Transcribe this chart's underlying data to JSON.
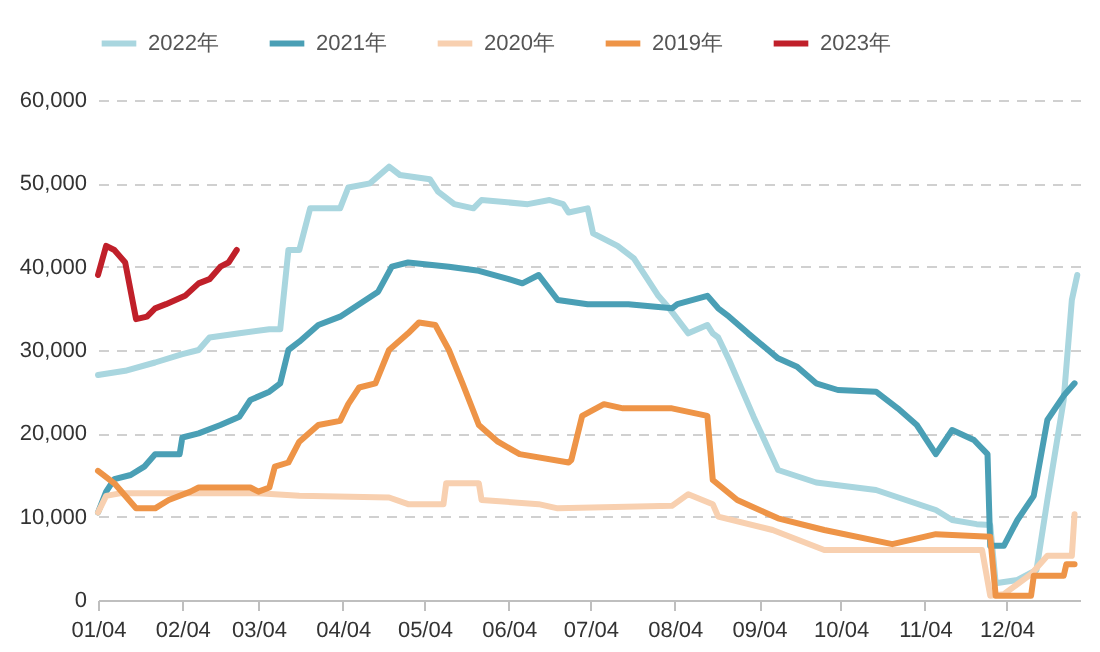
{
  "chart_data": {
    "type": "line",
    "legend": "top",
    "grid": "y",
    "xlim": [
      "--01-04",
      "--12-31"
    ],
    "xticks": [
      {
        "value": "--01-04",
        "label": "01/04"
      },
      {
        "value": "--02-04",
        "label": "02/04"
      },
      {
        "value": "--03-04",
        "label": "03/04"
      },
      {
        "value": "--04-04",
        "label": "04/04"
      },
      {
        "value": "--05-04",
        "label": "05/04"
      },
      {
        "value": "--06-04",
        "label": "06/04"
      },
      {
        "value": "--07-04",
        "label": "07/04"
      },
      {
        "value": "--08-04",
        "label": "08/04"
      },
      {
        "value": "--09-04",
        "label": "09/04"
      },
      {
        "value": "--10-04",
        "label": "10/04"
      },
      {
        "value": "--11-04",
        "label": "11/04"
      },
      {
        "value": "--12-04",
        "label": "12/04"
      }
    ],
    "ylim": [
      0,
      60000
    ],
    "yticks": [
      {
        "value": 0,
        "label": "0"
      },
      {
        "value": 10000,
        "label": "10,000"
      },
      {
        "value": 20000,
        "label": "20,000"
      },
      {
        "value": 30000,
        "label": "30,000"
      },
      {
        "value": 40000,
        "label": "40,000"
      },
      {
        "value": 50000,
        "label": "50,000"
      },
      {
        "value": 60000,
        "label": "60,000"
      }
    ],
    "series": [
      {
        "name": "2022年",
        "color": "#a9d6df",
        "x": [
          "--01-04",
          "--01-14",
          "--01-25",
          "--02-04",
          "--02-10",
          "--02-14",
          "--02-25",
          "--03-08",
          "--03-12",
          "--03-15",
          "--03-19",
          "--03-23",
          "--04-03",
          "--04-06",
          "--04-14",
          "--04-21",
          "--04-25",
          "--05-06",
          "--05-09",
          "--05-15",
          "--05-22",
          "--05-25",
          "--06-11",
          "--06-19",
          "--06-24",
          "--06-26",
          "--07-03",
          "--07-05",
          "--07-14",
          "--07-20",
          "--07-25",
          "--07-29",
          "--08-02",
          "--08-09",
          "--08-16",
          "--08-18",
          "--08-20",
          "--08-24",
          "--09-02",
          "--09-11",
          "--09-25",
          "--10-17",
          "--11-08",
          "--11-14",
          "--11-23",
          "--11-28",
          "--11-30",
          "--12-08",
          "--12-15",
          "--12-19",
          "--12-25",
          "--12-28",
          "--12-30"
        ],
        "values": [
          27000,
          27500,
          28500,
          29500,
          30000,
          31500,
          32000,
          32500,
          32500,
          42000,
          42000,
          47000,
          47000,
          49500,
          50000,
          52000,
          51000,
          50500,
          49000,
          47500,
          47000,
          48000,
          47500,
          48000,
          47500,
          46500,
          47000,
          44000,
          42500,
          41000,
          38500,
          36500,
          35000,
          32000,
          33000,
          32000,
          31500,
          28800,
          22000,
          15600,
          14100,
          13200,
          10800,
          9600,
          9100,
          9000,
          2000,
          2400,
          3600,
          12000,
          24000,
          36000,
          39000
        ]
      },
      {
        "name": "2021年",
        "color": "#4a9fb5",
        "x": [
          "--01-04",
          "--01-07",
          "--01-10",
          "--01-16",
          "--01-21",
          "--01-25",
          "--02-03",
          "--02-04",
          "--02-10",
          "--02-18",
          "--02-25",
          "--03-01",
          "--03-08",
          "--03-12",
          "--03-15",
          "--03-19",
          "--03-26",
          "--04-03",
          "--04-10",
          "--04-17",
          "--04-22",
          "--04-28",
          "--05-13",
          "--05-24",
          "--06-04",
          "--06-09",
          "--06-15",
          "--06-22",
          "--07-03",
          "--07-18",
          "--08-03",
          "--08-05",
          "--08-16",
          "--08-20",
          "--08-24",
          "--08-31",
          "--09-11",
          "--09-18",
          "--09-25",
          "--10-03",
          "--10-17",
          "--10-25",
          "--11-01",
          "--11-08",
          "--11-14",
          "--11-22",
          "--11-27",
          "--11-28",
          "--12-03",
          "--12-08",
          "--12-14",
          "--12-19",
          "--12-25",
          "--12-29"
        ],
        "values": [
          10500,
          13000,
          14500,
          15000,
          16000,
          17500,
          17500,
          19500,
          20000,
          21000,
          22000,
          24000,
          25000,
          26000,
          30000,
          31000,
          33000,
          34000,
          35500,
          37000,
          40000,
          40500,
          40000,
          39500,
          38500,
          38000,
          39000,
          36000,
          35500,
          35500,
          35000,
          35500,
          36500,
          35000,
          34000,
          32000,
          29000,
          28000,
          26000,
          25200,
          25000,
          23000,
          21000,
          17500,
          20400,
          19200,
          17500,
          6500,
          6500,
          9600,
          12500,
          21600,
          24500,
          26000
        ]
      },
      {
        "name": "2020年",
        "color": "#f8d0b0",
        "x": [
          "--01-04",
          "--01-07",
          "--01-12",
          "--03-04",
          "--03-19",
          "--04-21",
          "--04-28",
          "--05-11",
          "--05-12",
          "--05-24",
          "--05-25",
          "--06-15",
          "--06-22",
          "--08-03",
          "--08-09",
          "--08-18",
          "--08-20",
          "--09-09",
          "--09-28",
          "--11-25",
          "--11-28",
          "--12-03",
          "--12-13",
          "--12-19",
          "--12-28",
          "--12-29"
        ],
        "values": [
          10500,
          12500,
          12800,
          12800,
          12500,
          12300,
          11500,
          11500,
          14000,
          14000,
          12000,
          11500,
          11000,
          11300,
          12700,
          11500,
          10000,
          8400,
          6000,
          6000,
          500,
          700,
          3100,
          5300,
          5300,
          10300
        ]
      },
      {
        "name": "2019年",
        "color": "#ee9447",
        "x": [
          "--01-04",
          "--01-10",
          "--01-14",
          "--01-18",
          "--01-25",
          "--01-30",
          "--02-07",
          "--02-10",
          "--03-01",
          "--03-04",
          "--03-08",
          "--03-10",
          "--03-15",
          "--03-19",
          "--03-26",
          "--04-03",
          "--04-06",
          "--04-10",
          "--04-16",
          "--04-21",
          "--04-28",
          "--05-02",
          "--05-08",
          "--05-13",
          "--05-18",
          "--05-24",
          "--05-31",
          "--06-08",
          "--06-26",
          "--06-27",
          "--07-01",
          "--07-09",
          "--07-16",
          "--08-03",
          "--08-16",
          "--08-18",
          "--08-27",
          "--09-11",
          "--09-28",
          "--10-23",
          "--11-08",
          "--11-28",
          "--11-30",
          "--12-13",
          "--12-14",
          "--12-25",
          "--12-26",
          "--12-29"
        ],
        "values": [
          15500,
          14000,
          12500,
          11000,
          11000,
          12000,
          13000,
          13500,
          13500,
          13000,
          13500,
          16000,
          16500,
          19000,
          21000,
          21500,
          23500,
          25500,
          26000,
          30000,
          32000,
          33300,
          33000,
          30000,
          26000,
          21000,
          19000,
          17500,
          16500,
          16800,
          22100,
          23500,
          23000,
          23000,
          22100,
          14400,
          12000,
          9800,
          8400,
          6700,
          7900,
          7600,
          500,
          500,
          2900,
          2900,
          4300,
          4300
        ]
      },
      {
        "name": "2023年",
        "color": "#c0202a",
        "x": [
          "--01-04",
          "--01-07",
          "--01-10",
          "--01-14",
          "--01-18",
          "--01-22",
          "--01-25",
          "--01-29",
          "--02-05",
          "--02-10",
          "--02-14",
          "--02-18",
          "--02-21",
          "--02-24"
        ],
        "values": [
          39000,
          42500,
          42000,
          40500,
          33700,
          34000,
          35000,
          35500,
          36500,
          38000,
          38500,
          40000,
          40500,
          42000
        ]
      }
    ]
  }
}
